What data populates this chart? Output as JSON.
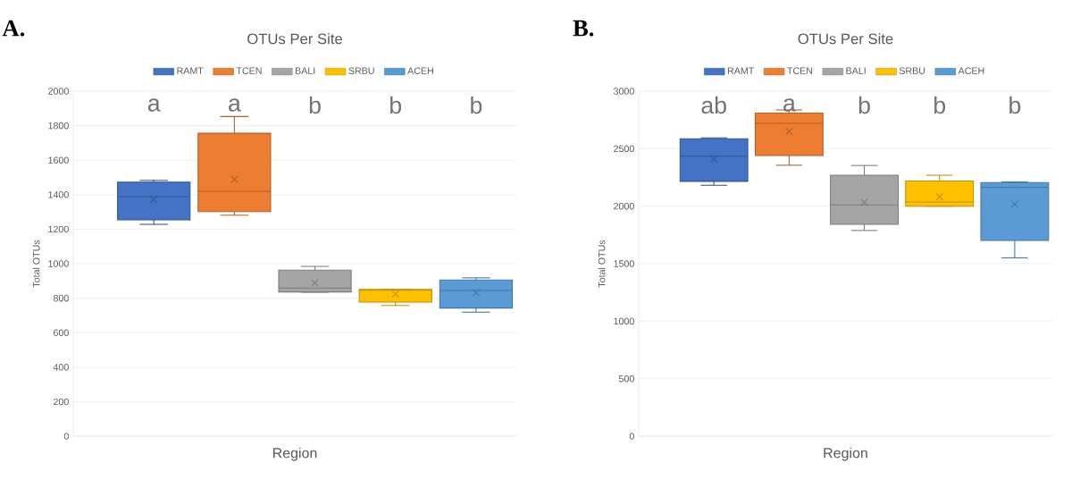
{
  "chart_data": [
    {
      "type": "box",
      "title": "OTUs Per Site",
      "xlabel": "Region",
      "ylabel": "Total OTUs",
      "categories": [
        null
      ],
      "ylim": [
        0,
        2000
      ],
      "yticks": [
        0,
        200,
        400,
        600,
        800,
        1000,
        1200,
        1400,
        1600,
        1800,
        2000
      ],
      "grid": "y",
      "legend": "top",
      "annotations": [
        "A.",
        "a",
        "a",
        "b",
        "b",
        "b"
      ],
      "series": [
        {
          "name": "RAMT",
          "color": "#4472c4",
          "boxes": [
            {
              "low": 1228,
              "q1": 1254,
              "median": 1389,
              "q3": 1473,
              "high": 1483,
              "mean": 1371
            }
          ]
        },
        {
          "name": "TCEN",
          "color": "#ed7d31",
          "boxes": [
            {
              "low": 1281,
              "q1": 1302,
              "median": 1420,
              "q3": 1756,
              "high": 1853,
              "mean": 1489
            }
          ]
        },
        {
          "name": "BALI",
          "color": "#a5a5a5",
          "boxes": [
            {
              "low": 834,
              "q1": 836,
              "median": 859,
              "q3": 962,
              "high": 984,
              "mean": 888
            }
          ]
        },
        {
          "name": "SRBU",
          "color": "#ffc000",
          "boxes": [
            {
              "low": 758,
              "q1": 777,
              "median": 846,
              "q3": 851,
              "high": 851,
              "mean": 824
            }
          ]
        },
        {
          "name": "ACEH",
          "color": "#5b9bd5",
          "boxes": [
            {
              "low": 719,
              "q1": 743,
              "median": 845,
              "q3": 905,
              "high": 918,
              "mean": 833
            }
          ]
        }
      ]
    },
    {
      "type": "box",
      "title": "OTUs Per Site",
      "xlabel": "Region",
      "ylabel": "Total OTUs",
      "categories": [
        null
      ],
      "ylim": [
        0,
        3000
      ],
      "yticks": [
        0,
        500,
        1000,
        1500,
        2000,
        2500,
        3000
      ],
      "grid": "y",
      "legend": "top",
      "annotations": [
        "B.",
        "ab",
        "a",
        "b",
        "b",
        "b"
      ],
      "series": [
        {
          "name": "RAMT",
          "color": "#4472c4",
          "boxes": [
            {
              "low": 2182,
              "q1": 2216,
              "median": 2435,
              "q3": 2586,
              "high": 2594,
              "mean": 2409
            }
          ]
        },
        {
          "name": "TCEN",
          "color": "#ed7d31",
          "boxes": [
            {
              "low": 2356,
              "q1": 2441,
              "median": 2720,
              "q3": 2810,
              "high": 2837,
              "mean": 2652
            }
          ]
        },
        {
          "name": "BALI",
          "color": "#a5a5a5",
          "boxes": [
            {
              "low": 1789,
              "q1": 1842,
              "median": 2011,
              "q3": 2269,
              "high": 2354,
              "mean": 2034
            }
          ]
        },
        {
          "name": "SRBU",
          "color": "#ffc000",
          "boxes": [
            {
              "low": 2000,
              "q1": 2000,
              "median": 2037,
              "q3": 2219,
              "high": 2269,
              "mean": 2082
            }
          ]
        },
        {
          "name": "ACEH",
          "color": "#5b9bd5",
          "boxes": [
            {
              "low": 1551,
              "q1": 1702,
              "median": 2164,
              "q3": 2206,
              "high": 2211,
              "mean": 2018
            }
          ]
        }
      ]
    }
  ]
}
